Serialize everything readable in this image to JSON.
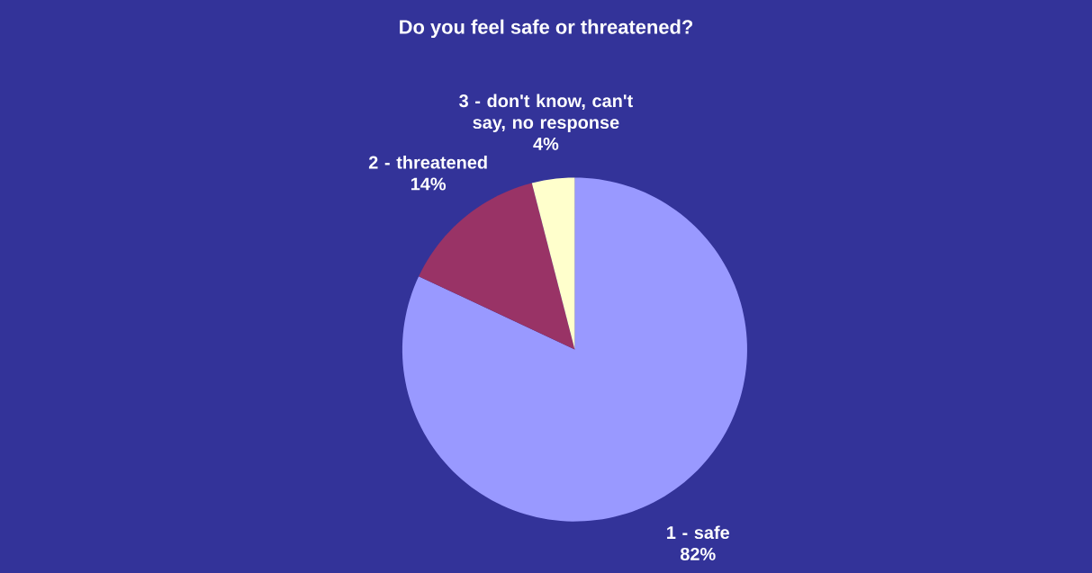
{
  "chart_data": {
    "type": "pie",
    "title": "Do you feel safe or threatened?",
    "categories": [
      "1 - safe",
      "2 - threatened",
      "3 - don't know, can't say, no response"
    ],
    "values": [
      82,
      14,
      4
    ],
    "colors": [
      "#9999ff",
      "#993366",
      "#ffffcc"
    ],
    "value_labels": [
      "82%",
      "14%",
      "4%"
    ]
  }
}
